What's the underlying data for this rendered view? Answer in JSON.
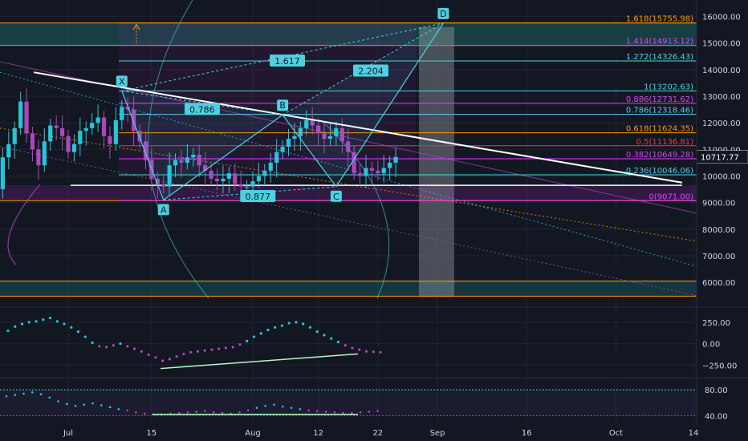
{
  "chart_data": {
    "type": "candlestick",
    "title": "",
    "x_tick_labels": [
      "Jul",
      "15",
      "Aug",
      "12",
      "22",
      "Sep",
      "16",
      "Oct",
      "14"
    ],
    "y_axis": {
      "min": 5400,
      "max": 16500,
      "tick_labels": [
        "16000.00",
        "15000.00",
        "14000.00",
        "13000.00",
        "12000.00",
        "11000.00",
        "10000.00",
        "9000.00",
        "8000.00",
        "7000.00",
        "6000.00"
      ],
      "tick_values": [
        16000,
        15000,
        14000,
        13000,
        12000,
        11000,
        10000,
        9000,
        8000,
        7000,
        6000
      ],
      "last_price_label": "10717.77",
      "last_price": 10717.77
    },
    "fib_levels": [
      {
        "label": "1.618(15755.98)",
        "value": 15755.98,
        "color": "#ff9800"
      },
      {
        "label": "1.414(14913.12)",
        "value": 14913.12,
        "color": "#e040fb"
      },
      {
        "label": "1.272(14326.43)",
        "value": 14326.43,
        "color": "#4dd0e1"
      },
      {
        "label": "1(13202.63)",
        "value": 13202.63,
        "color": "#4dd0e1"
      },
      {
        "label": "0.886(12731.62)",
        "value": 12731.62,
        "color": "#e040fb"
      },
      {
        "label": "0.786(12318.46)",
        "value": 12318.46,
        "color": "#4dd0e1"
      },
      {
        "label": "0.618(11624.35)",
        "value": 11624.35,
        "color": "#ff9800"
      },
      {
        "label": "0.5(11136.81)",
        "value": 11136.81,
        "color": "#f23645"
      },
      {
        "label": "0.382(10649.28)",
        "value": 10649.28,
        "color": "#e040fb"
      },
      {
        "label": "0.236(10046.06)",
        "value": 10046.06,
        "color": "#4dd0e1"
      },
      {
        "label": "0(9071.00)",
        "value": 9071.0,
        "color": "#e040fb"
      }
    ],
    "pattern_points": [
      {
        "label": "X",
        "date": "2019-07-10",
        "value": 13200
      },
      {
        "label": "A",
        "date": "2019-07-17",
        "value": 9100
      },
      {
        "label": "B",
        "date": "2019-08-06",
        "value": 12300
      },
      {
        "label": "C",
        "date": "2019-08-15",
        "value": 9600
      },
      {
        "label": "D",
        "date": "2019-09-02",
        "value": 15750
      }
    ],
    "pattern_ratios": [
      "0.786",
      "0.877",
      "1.617",
      "2.204"
    ],
    "candles_close": [
      9500,
      10700,
      11200,
      11800,
      12800,
      11600,
      11000,
      10400,
      11300,
      11900,
      11800,
      11500,
      10900,
      11200,
      11700,
      11800,
      12000,
      12200,
      11500,
      11200,
      12100,
      12600,
      12500,
      11700,
      11300,
      10600,
      9900,
      9700,
      9600,
      10400,
      10600,
      10500,
      10700,
      10800,
      10400,
      10200,
      9900,
      9800,
      9900,
      10100,
      9700,
      9600,
      9600,
      9800,
      10000,
      10200,
      10500,
      10900,
      11100,
      11400,
      11500,
      11800,
      12100,
      11900,
      11600,
      11400,
      11500,
      11800,
      11300,
      10900,
      10100,
      10000,
      10300,
      10200,
      10100,
      10300,
      10500,
      10717
    ],
    "candles_open": [
      9100,
      9500,
      10700,
      11200,
      11800,
      12800,
      11600,
      11000,
      10400,
      11300,
      11900,
      11800,
      11500,
      10900,
      11200,
      11700,
      11800,
      12000,
      12200,
      11500,
      11200,
      12100,
      12600,
      12500,
      11700,
      11300,
      10600,
      9900,
      9700,
      9600,
      10400,
      10600,
      10500,
      10700,
      10800,
      10400,
      10200,
      9900,
      9800,
      9900,
      10100,
      9700,
      9600,
      9600,
      9800,
      10000,
      10200,
      10500,
      10900,
      11100,
      11400,
      11500,
      11800,
      12100,
      11900,
      11600,
      11400,
      11500,
      11800,
      11300,
      10900,
      10100,
      10000,
      10300,
      10200,
      10100,
      10300,
      10500
    ],
    "oscillator_1": {
      "tick_labels": [
        "250.00",
        "0.00",
        "−250.00"
      ],
      "tick_values": [
        250,
        0,
        -250
      ],
      "range": [
        -350,
        380
      ],
      "values": [
        150,
        200,
        230,
        250,
        260,
        280,
        300,
        260,
        230,
        190,
        140,
        80,
        10,
        -30,
        -40,
        -20,
        0,
        -30,
        -60,
        -90,
        -130,
        -160,
        -200,
        -180,
        -150,
        -120,
        -100,
        -90,
        -80,
        -70,
        -60,
        -50,
        -40,
        -10,
        30,
        80,
        120,
        160,
        190,
        210,
        240,
        250,
        230,
        190,
        140,
        100,
        60,
        20,
        -20,
        -50,
        -70,
        -90,
        -95,
        -100
      ]
    },
    "oscillator_2": {
      "tick_labels": [
        "80.00",
        "40.00"
      ],
      "tick_values": [
        80,
        40
      ],
      "range": [
        28,
        95
      ],
      "values": [
        70,
        72,
        74,
        76,
        73,
        68,
        62,
        58,
        55,
        57,
        59,
        56,
        53,
        50,
        48,
        45,
        43,
        42,
        42,
        43,
        44,
        45,
        46,
        47,
        45,
        44,
        43,
        45,
        48,
        52,
        55,
        57,
        54,
        52,
        50,
        48,
        47,
        46,
        45,
        44,
        44,
        45,
        46,
        47
      ]
    },
    "colors": {
      "background": "#131722",
      "up": "#26c6da",
      "down": "#ab47bc",
      "grid": "#1e2330",
      "axis_text": "#d1d4dc",
      "pattern": "#4dd0e1",
      "trendline": "#ffffff",
      "label_box": "#4dd0e1"
    }
  }
}
